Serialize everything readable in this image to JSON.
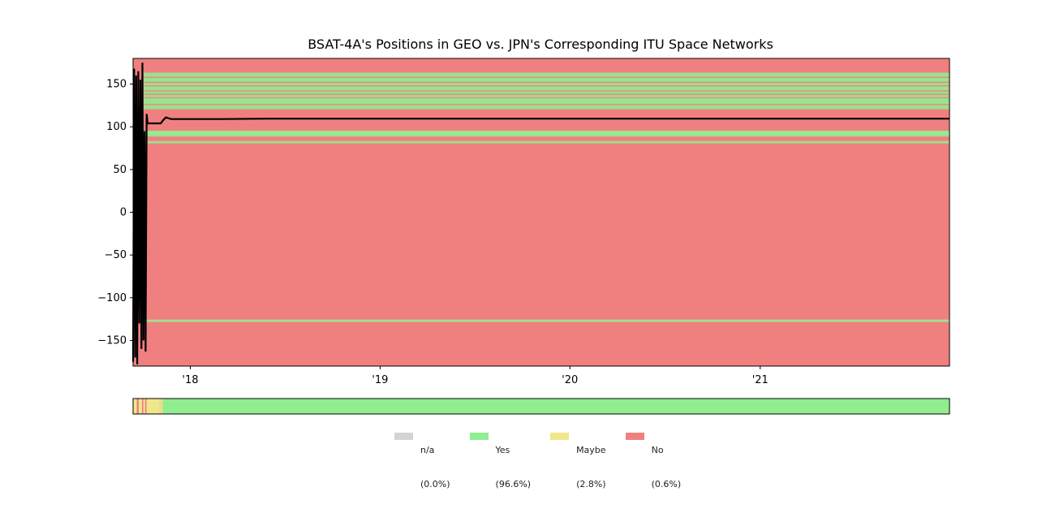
{
  "chart_data": {
    "type": "line",
    "title": "BSAT-4A's Positions in GEO vs. JPN's Corresponding ITU Space Networks",
    "xlabel": "",
    "ylabel": "",
    "x_range": [
      "2017-09-13",
      "2021-12-31"
    ],
    "x_tick_labels": [
      "'18",
      "'19",
      "'20",
      "'21"
    ],
    "x_tick_dates": [
      "2018-01-01",
      "2019-01-01",
      "2020-01-01",
      "2021-01-01"
    ],
    "ylim": [
      -180,
      180
    ],
    "y_ticks": [
      -150,
      -100,
      -50,
      0,
      50,
      100,
      150
    ],
    "y_tick_labels": [
      "−150",
      "−100",
      "−50",
      "0",
      "50",
      "100",
      "150"
    ],
    "background_color": "#f08080",
    "itu_network_band_longitudes": [
      -127,
      82,
      90,
      92,
      93,
      94,
      122,
      124,
      128,
      130,
      132,
      136,
      140,
      144,
      146,
      150,
      154,
      156,
      160,
      162
    ],
    "series": [
      {
        "color": "#000000",
        "points": [
          [
            "2017-09-13",
            -175
          ],
          [
            "2017-09-15",
            168
          ],
          [
            "2017-09-17",
            -170
          ],
          [
            "2017-09-19",
            160
          ],
          [
            "2017-09-21",
            -178
          ],
          [
            "2017-09-23",
            165
          ],
          [
            "2017-09-25",
            -130
          ],
          [
            "2017-09-27",
            155
          ],
          [
            "2017-09-29",
            -160
          ],
          [
            "2017-10-01",
            175
          ],
          [
            "2017-10-03",
            -150
          ],
          [
            "2017-10-05",
            95
          ],
          [
            "2017-10-07",
            -163
          ],
          [
            "2017-10-09",
            115
          ],
          [
            "2017-10-11",
            104
          ],
          [
            "2017-10-25",
            104
          ],
          [
            "2017-11-05",
            104
          ],
          [
            "2017-11-10",
            108
          ],
          [
            "2017-11-15",
            111
          ],
          [
            "2017-11-25",
            109
          ],
          [
            "2018-03-01",
            109
          ],
          [
            "2018-06-01",
            109.5
          ],
          [
            "2019-06-01",
            109.5
          ],
          [
            "2021-12-31",
            109.5
          ]
        ]
      }
    ],
    "status_bar": {
      "segments": [
        [
          "2017-09-13",
          "2017-09-20",
          "#f0e68c"
        ],
        [
          "2017-09-20",
          "2017-09-24",
          "#f08080"
        ],
        [
          "2017-09-24",
          "2017-09-30",
          "#f0e68c"
        ],
        [
          "2017-09-30",
          "2017-10-03",
          "#f08080"
        ],
        [
          "2017-10-03",
          "2017-10-06",
          "#f0e68c"
        ],
        [
          "2017-10-06",
          "2017-10-09",
          "#f08080"
        ],
        [
          "2017-10-09",
          "2017-11-01",
          "#f0e68c"
        ],
        [
          "2017-11-01",
          "2017-11-09",
          "#eedd88"
        ],
        [
          "2017-11-09",
          "2021-12-31",
          "#90ee90"
        ]
      ]
    },
    "legend": [
      {
        "name": "n/a",
        "pct": "(0.0%)",
        "color": "#d3d3d3"
      },
      {
        "name": "Yes",
        "pct": "(96.6%)",
        "color": "#90ee90"
      },
      {
        "name": "Maybe",
        "pct": "(2.8%)",
        "color": "#f0e68c"
      },
      {
        "name": "No",
        "pct": "(0.6%)",
        "color": "#f08080"
      }
    ]
  }
}
